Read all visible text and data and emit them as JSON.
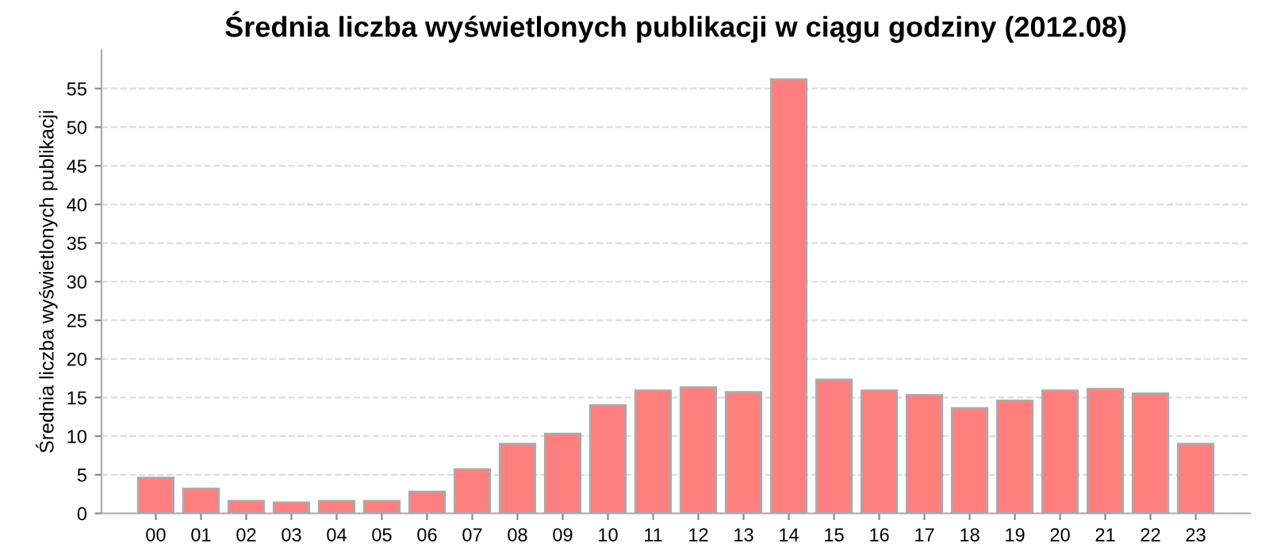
{
  "chart_data": {
    "type": "bar",
    "title": "Średnia liczba wyświetlonych publikacji w ciągu godziny (2012.08)",
    "ylabel": "Średnia liczba wyświetlonych publikacji",
    "categories": [
      "00",
      "01",
      "02",
      "03",
      "04",
      "05",
      "06",
      "07",
      "08",
      "09",
      "10",
      "11",
      "12",
      "13",
      "14",
      "15",
      "16",
      "17",
      "18",
      "19",
      "20",
      "21",
      "22",
      "23"
    ],
    "values": [
      4.6,
      3.2,
      1.6,
      1.4,
      1.6,
      1.6,
      2.8,
      5.7,
      9.0,
      10.3,
      14.0,
      15.9,
      16.3,
      15.7,
      56.2,
      17.3,
      15.9,
      15.3,
      13.6,
      14.6,
      15.9,
      16.1,
      15.5,
      9.0
    ],
    "color": "#ff7f7f",
    "ylim": [
      0,
      60
    ],
    "yticks": [
      0,
      5,
      10,
      15,
      20,
      25,
      30,
      35,
      40,
      45,
      50,
      55
    ],
    "grid": "y"
  }
}
